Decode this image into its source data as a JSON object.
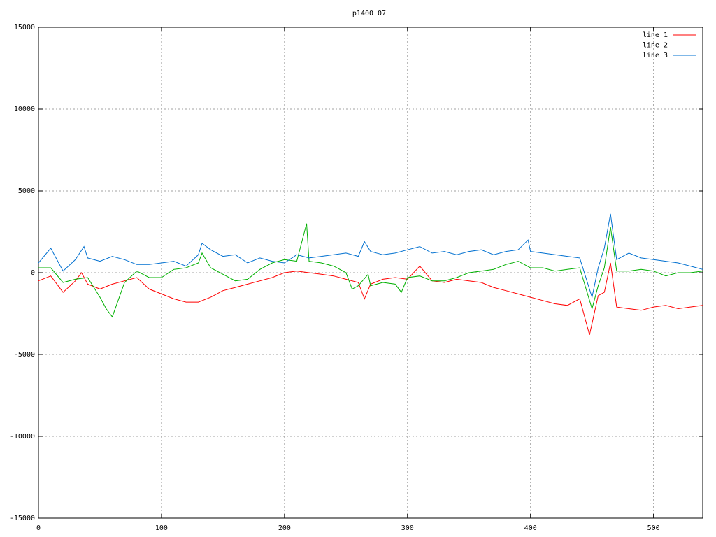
{
  "chart_data": {
    "type": "line",
    "title": "p1400_07",
    "xlim": [
      0,
      540
    ],
    "xticks": [
      0,
      100,
      200,
      300,
      400,
      500
    ],
    "ylim": [
      -15000,
      15000
    ],
    "yticks": [
      -15000,
      -10000,
      -5000,
      0,
      5000,
      10000,
      15000
    ],
    "grid": true,
    "legend": "top-right",
    "series": [
      {
        "name": "line 1",
        "color": "#ff0000",
        "x": [
          0,
          10,
          20,
          30,
          35,
          40,
          50,
          60,
          70,
          80,
          90,
          100,
          110,
          120,
          130,
          140,
          150,
          160,
          170,
          180,
          190,
          200,
          210,
          220,
          230,
          240,
          250,
          260,
          265,
          270,
          280,
          290,
          300,
          310,
          320,
          330,
          340,
          350,
          360,
          370,
          380,
          390,
          400,
          410,
          420,
          430,
          440,
          448,
          455,
          460,
          465,
          470,
          480,
          490,
          500,
          510,
          520,
          530,
          540
        ],
        "values": [
          -500,
          -200,
          -1200,
          -500,
          0,
          -700,
          -1000,
          -700,
          -500,
          -300,
          -1000,
          -1300,
          -1600,
          -1800,
          -1800,
          -1500,
          -1100,
          -900,
          -700,
          -500,
          -300,
          0,
          100,
          0,
          -100,
          -200,
          -400,
          -600,
          -1600,
          -700,
          -400,
          -300,
          -400,
          400,
          -500,
          -600,
          -400,
          -500,
          -600,
          -900,
          -1100,
          -1300,
          -1500,
          -1700,
          -1900,
          -2000,
          -1600,
          -3800,
          -1400,
          -1200,
          600,
          -2100,
          -2200,
          -2300,
          -2100,
          -2000,
          -2200,
          -2100,
          -2000
        ]
      },
      {
        "name": "line 2",
        "color": "#00b000",
        "x": [
          0,
          10,
          20,
          30,
          40,
          50,
          55,
          60,
          70,
          80,
          90,
          100,
          110,
          120,
          130,
          133,
          140,
          150,
          160,
          170,
          180,
          190,
          200,
          210,
          218,
          220,
          230,
          240,
          250,
          255,
          260,
          268,
          270,
          280,
          290,
          295,
          300,
          310,
          320,
          330,
          340,
          350,
          360,
          370,
          380,
          390,
          400,
          410,
          420,
          430,
          440,
          450,
          455,
          460,
          465,
          470,
          480,
          490,
          500,
          510,
          520,
          530,
          540
        ],
        "values": [
          300,
          300,
          -600,
          -400,
          -300,
          -1500,
          -2200,
          -2700,
          -600,
          100,
          -300,
          -300,
          200,
          300,
          600,
          1200,
          300,
          -100,
          -500,
          -400,
          200,
          600,
          800,
          700,
          3000,
          700,
          600,
          400,
          0,
          -1000,
          -800,
          -100,
          -800,
          -600,
          -700,
          -1200,
          -300,
          -200,
          -500,
          -500,
          -300,
          0,
          100,
          200,
          500,
          700,
          300,
          300,
          100,
          200,
          300,
          -2200,
          -800,
          300,
          2800,
          100,
          100,
          200,
          100,
          -200,
          0,
          0,
          100
        ]
      },
      {
        "name": "line 3",
        "color": "#0070d0",
        "x": [
          0,
          10,
          20,
          30,
          37,
          40,
          50,
          60,
          70,
          80,
          90,
          100,
          110,
          120,
          130,
          133,
          140,
          150,
          160,
          170,
          180,
          190,
          200,
          210,
          220,
          230,
          240,
          250,
          260,
          265,
          270,
          280,
          290,
          300,
          310,
          320,
          330,
          340,
          350,
          360,
          370,
          380,
          390,
          398,
          400,
          410,
          420,
          430,
          440,
          450,
          455,
          460,
          465,
          470,
          480,
          490,
          500,
          510,
          520,
          530,
          540
        ],
        "values": [
          600,
          1500,
          100,
          800,
          1600,
          900,
          700,
          1000,
          800,
          500,
          500,
          600,
          700,
          400,
          1100,
          1800,
          1400,
          1000,
          1100,
          600,
          900,
          700,
          600,
          1100,
          900,
          1000,
          1100,
          1200,
          1000,
          1900,
          1300,
          1100,
          1200,
          1400,
          1600,
          1200,
          1300,
          1100,
          1300,
          1400,
          1100,
          1300,
          1400,
          2000,
          1300,
          1200,
          1100,
          1000,
          900,
          -1500,
          300,
          1500,
          3600,
          800,
          1200,
          900,
          800,
          700,
          600,
          400,
          200
        ]
      }
    ]
  }
}
